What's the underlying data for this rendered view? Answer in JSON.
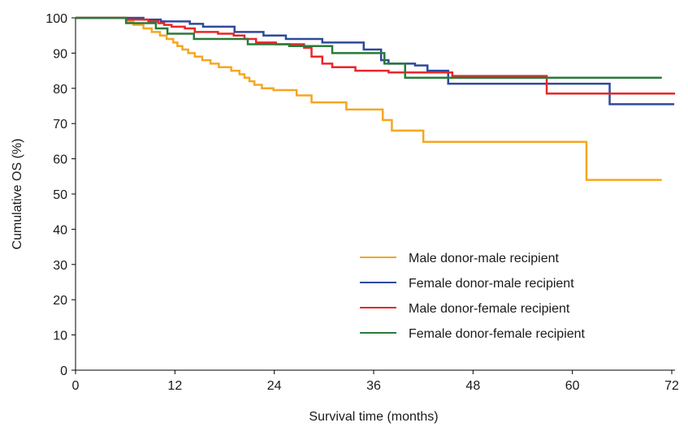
{
  "chart_data": {
    "type": "line",
    "title": "",
    "xlabel": "Survival time (months)",
    "ylabel": "Cumulative OS (%)",
    "xlim": [
      0,
      72
    ],
    "ylim": [
      0,
      100
    ],
    "xticks": [
      0,
      12,
      24,
      36,
      48,
      60,
      72
    ],
    "yticks": [
      0,
      10,
      20,
      30,
      40,
      50,
      60,
      70,
      80,
      90,
      100
    ],
    "grid": false,
    "legend_position": "bottom-right",
    "series": [
      {
        "name": "Male donor-male recipient",
        "color": "#F5A623",
        "step": true,
        "x": [
          0,
          6.2,
          7.0,
          8.2,
          9.2,
          10.2,
          11.0,
          11.8,
          12.3,
          12.9,
          13.6,
          14.4,
          15.3,
          16.3,
          17.3,
          18.8,
          19.8,
          20.4,
          21.0,
          21.6,
          22.5,
          23.9,
          26.7,
          28.5,
          32.7,
          37.1,
          38.2,
          42.0,
          61.7,
          70.8
        ],
        "y": [
          100,
          99.0,
          98.0,
          97.0,
          96.0,
          95.0,
          94.0,
          93.0,
          92.0,
          91.0,
          90.0,
          89.0,
          88.0,
          87.0,
          86.0,
          85.0,
          84.0,
          83.0,
          82.0,
          81.0,
          80.0,
          79.5,
          78.0,
          76.0,
          74.0,
          71.0,
          68.0,
          64.8,
          54.0,
          54.0
        ]
      },
      {
        "name": "Female donor-male recipient",
        "color": "#2E4A9A",
        "step": true,
        "x": [
          0,
          8.2,
          10.3,
          13.8,
          15.4,
          19.2,
          22.7,
          25.4,
          29.8,
          34.8,
          36.9,
          37.8,
          41.0,
          42.5,
          45.0,
          64.5,
          72.3
        ],
        "y": [
          100,
          99.5,
          99.0,
          98.3,
          97.5,
          96.0,
          95.0,
          94.0,
          93.0,
          91.0,
          88.0,
          87.0,
          86.5,
          85.0,
          81.3,
          75.5,
          75.5
        ]
      },
      {
        "name": "Male donor-female recipient",
        "color": "#E8262A",
        "step": true,
        "x": [
          0,
          6.1,
          8.8,
          10.0,
          10.7,
          11.6,
          13.2,
          14.4,
          17.2,
          19.1,
          20.4,
          21.8,
          24.2,
          27.6,
          28.5,
          29.8,
          31.0,
          33.8,
          37.8,
          45.5,
          56.9,
          72.4
        ],
        "y": [
          100,
          99.5,
          99.0,
          98.5,
          98.0,
          97.5,
          97.0,
          96.0,
          95.5,
          95.0,
          94.0,
          93.0,
          92.5,
          91.5,
          89.0,
          87.0,
          86.0,
          85.0,
          84.5,
          83.5,
          78.5,
          78.5
        ]
      },
      {
        "name": "Female donor-female recipient",
        "color": "#2A7A3A",
        "step": true,
        "x": [
          0,
          6.1,
          9.7,
          11.1,
          14.3,
          20.8,
          25.8,
          31.0,
          37.3,
          39.8,
          49.0,
          57.5,
          70.8
        ],
        "y": [
          100,
          98.5,
          97.0,
          95.5,
          94.0,
          92.5,
          92.0,
          90.0,
          87.0,
          83.0,
          83.0,
          83.0,
          83.0
        ]
      }
    ]
  }
}
